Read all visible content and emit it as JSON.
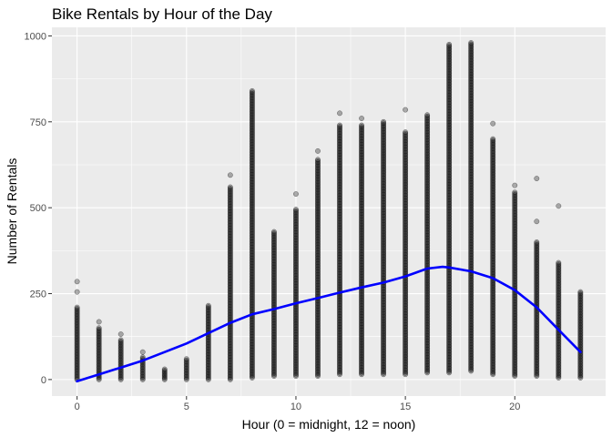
{
  "chart_data": {
    "type": "scatter",
    "title": "Bike Rentals by Hour of the Day",
    "xlabel": "Hour (0 = midnight, 12 = noon)",
    "ylabel": "Number of Rentals",
    "xlim": [
      -1.15,
      24.15
    ],
    "ylim": [
      -48,
      1025
    ],
    "x_ticks": [
      0,
      5,
      10,
      15,
      20
    ],
    "y_ticks": [
      0,
      250,
      500,
      750,
      1000
    ],
    "y_tick_labels": [
      "0",
      "250",
      "500",
      "750",
      "1000"
    ],
    "grid": true,
    "point_color": "#000000",
    "point_opacity": 0.3,
    "hours": [
      {
        "x": 0,
        "min": 0,
        "max": 210,
        "outliers": [
          255,
          285
        ]
      },
      {
        "x": 1,
        "min": 0,
        "max": 150,
        "outliers": [
          168
        ]
      },
      {
        "x": 2,
        "min": 0,
        "max": 115,
        "outliers": [
          132
        ]
      },
      {
        "x": 3,
        "min": 0,
        "max": 65,
        "outliers": [
          80
        ]
      },
      {
        "x": 4,
        "min": 0,
        "max": 30,
        "outliers": []
      },
      {
        "x": 5,
        "min": 0,
        "max": 60,
        "outliers": []
      },
      {
        "x": 6,
        "min": 0,
        "max": 215,
        "outliers": []
      },
      {
        "x": 7,
        "min": 0,
        "max": 560,
        "outliers": [
          595
        ]
      },
      {
        "x": 8,
        "min": 5,
        "max": 840,
        "outliers": []
      },
      {
        "x": 9,
        "min": 10,
        "max": 430,
        "outliers": []
      },
      {
        "x": 10,
        "min": 10,
        "max": 495,
        "outliers": [
          540
        ]
      },
      {
        "x": 11,
        "min": 10,
        "max": 640,
        "outliers": [
          665
        ]
      },
      {
        "x": 12,
        "min": 15,
        "max": 740,
        "outliers": [
          775
        ]
      },
      {
        "x": 13,
        "min": 15,
        "max": 740,
        "outliers": [
          760
        ]
      },
      {
        "x": 14,
        "min": 15,
        "max": 750,
        "outliers": []
      },
      {
        "x": 15,
        "min": 15,
        "max": 720,
        "outliers": [
          785
        ]
      },
      {
        "x": 16,
        "min": 20,
        "max": 770,
        "outliers": []
      },
      {
        "x": 17,
        "min": 20,
        "max": 975,
        "outliers": []
      },
      {
        "x": 18,
        "min": 25,
        "max": 980,
        "outliers": []
      },
      {
        "x": 19,
        "min": 15,
        "max": 700,
        "outliers": [
          745
        ]
      },
      {
        "x": 20,
        "min": 10,
        "max": 545,
        "outliers": [
          565
        ]
      },
      {
        "x": 21,
        "min": 10,
        "max": 400,
        "outliers": [
          460,
          585
        ]
      },
      {
        "x": 22,
        "min": 5,
        "max": 340,
        "outliers": [
          505
        ]
      },
      {
        "x": 23,
        "min": 5,
        "max": 255,
        "outliers": []
      }
    ],
    "smooth_line": {
      "color": "#0000ff",
      "points": [
        {
          "x": 0,
          "y": -5
        },
        {
          "x": 1,
          "y": 15
        },
        {
          "x": 2,
          "y": 35
        },
        {
          "x": 3,
          "y": 55
        },
        {
          "x": 4,
          "y": 80
        },
        {
          "x": 5,
          "y": 105
        },
        {
          "x": 6,
          "y": 135
        },
        {
          "x": 7,
          "y": 165
        },
        {
          "x": 8,
          "y": 190
        },
        {
          "x": 9,
          "y": 205
        },
        {
          "x": 10,
          "y": 222
        },
        {
          "x": 11,
          "y": 237
        },
        {
          "x": 12,
          "y": 253
        },
        {
          "x": 13,
          "y": 268
        },
        {
          "x": 14,
          "y": 282
        },
        {
          "x": 15,
          "y": 300
        },
        {
          "x": 16,
          "y": 323
        },
        {
          "x": 16.7,
          "y": 328
        },
        {
          "x": 17,
          "y": 326
        },
        {
          "x": 18,
          "y": 315
        },
        {
          "x": 19,
          "y": 295
        },
        {
          "x": 20,
          "y": 260
        },
        {
          "x": 21,
          "y": 210
        },
        {
          "x": 22,
          "y": 145
        },
        {
          "x": 23,
          "y": 80
        }
      ]
    }
  }
}
